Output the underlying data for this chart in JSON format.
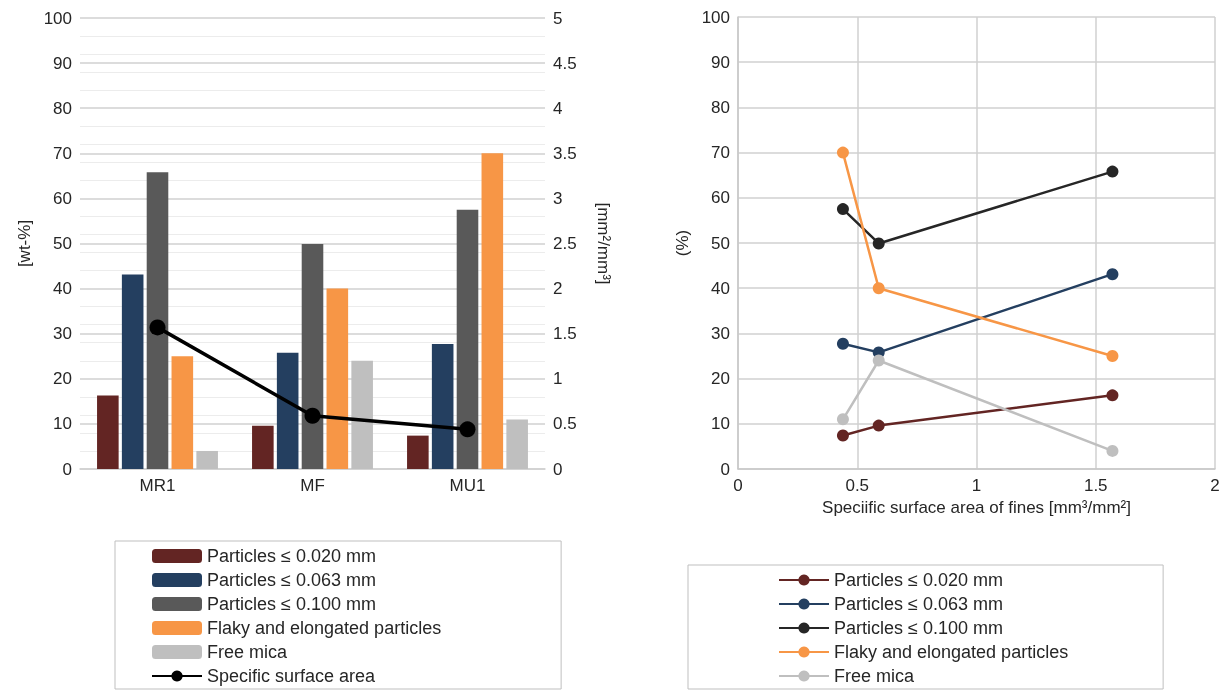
{
  "chart_data": [
    {
      "type": "bar",
      "ylabel": "[wt-%]",
      "y2label": "[mm²/mm³]",
      "categories": [
        "MR1",
        "MF",
        "MU1"
      ],
      "series": [
        {
          "name": "Particles ≤ 0.020 mm",
          "color": "#632523",
          "values": [
            16.3,
            9.6,
            7.4
          ]
        },
        {
          "name": "Particles ≤ 0.063 mm",
          "color": "#243f60",
          "values": [
            43.1,
            25.8,
            27.7
          ]
        },
        {
          "name": "Particles ≤ 0.100 mm",
          "color": "#595959",
          "values": [
            65.8,
            49.9,
            57.5
          ]
        },
        {
          "name": "Flaky and elongated particles",
          "color": "#f79646",
          "values": [
            25,
            40,
            70
          ]
        },
        {
          "name": "Free mica",
          "color": "#bfbfbf",
          "values": [
            4,
            24,
            11
          ]
        },
        {
          "name": "Specific surface area",
          "color": "#000000",
          "type": "line",
          "axis": "y2",
          "marker": "circle",
          "values": [
            1.57,
            0.59,
            0.44
          ]
        }
      ],
      "ylim": [
        0,
        100
      ],
      "yticks": [
        0,
        10,
        20,
        30,
        40,
        50,
        60,
        70,
        80,
        90,
        100
      ],
      "y2lim": [
        0,
        5
      ],
      "y2ticks": [
        0,
        0.5,
        1,
        1.5,
        2,
        2.5,
        3,
        3.5,
        4,
        4.5,
        5
      ],
      "grid": "y",
      "legend": "bottom"
    },
    {
      "type": "line",
      "xlabel": "Speciific surface area of fines [mm³/mm²]",
      "ylabel": "(%)",
      "x": [
        0.44,
        0.59,
        1.57
      ],
      "series": [
        {
          "name": "Particles ≤ 0.020 mm",
          "color": "#632523",
          "values": [
            7.4,
            9.6,
            16.3
          ]
        },
        {
          "name": "Particles ≤ 0.063 mm",
          "color": "#243f60",
          "values": [
            27.7,
            25.8,
            43.1
          ]
        },
        {
          "name": "Particles ≤ 0.100 mm",
          "color": "#262626",
          "values": [
            57.5,
            49.9,
            65.8
          ]
        },
        {
          "name": "Flaky and elongated particles",
          "color": "#f79646",
          "values": [
            70,
            40,
            25
          ]
        },
        {
          "name": "Free mica",
          "color": "#bfbfbf",
          "values": [
            11,
            24,
            4
          ]
        }
      ],
      "xlim": [
        0,
        2
      ],
      "xticks": [
        0,
        0.5,
        1,
        1.5,
        2
      ],
      "ylim": [
        0,
        100
      ],
      "yticks": [
        0,
        10,
        20,
        30,
        40,
        50,
        60,
        70,
        80,
        90,
        100
      ],
      "grid": true,
      "legend": "bottom",
      "marker": "circle",
      "line_style": "solid"
    }
  ]
}
